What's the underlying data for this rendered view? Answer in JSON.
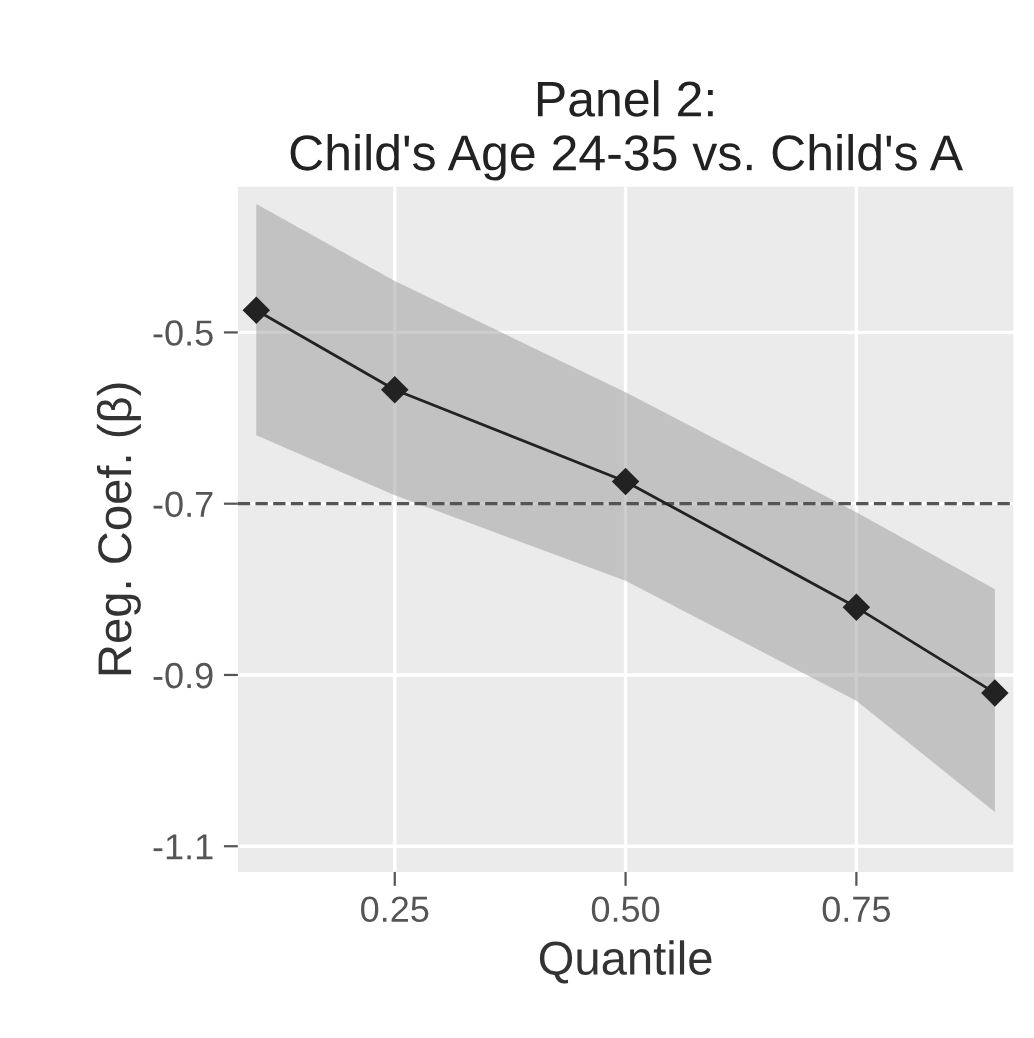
{
  "chart_data": {
    "type": "line",
    "title": "Panel 2:\nChild's Age 24-35 vs. Child's A",
    "xlabel": "Quantile",
    "ylabel": "Reg. Coef. (β)",
    "x": [
      0.1,
      0.25,
      0.5,
      0.75,
      0.9
    ],
    "series": [
      {
        "color": "#222222",
        "values": [
          -0.474,
          -0.567,
          -0.674,
          -0.821,
          -0.921
        ],
        "lower": [
          -0.62,
          -0.69,
          -0.79,
          -0.93,
          -1.06
        ],
        "upper": [
          -0.35,
          -0.44,
          -0.57,
          -0.71,
          -0.8
        ]
      }
    ],
    "xlim": [
      0.08,
      0.92
    ],
    "ylim": [
      -1.13,
      -0.33
    ],
    "xticks": [
      {
        "value": 0.25,
        "label": "0.25"
      },
      {
        "value": 0.5,
        "label": "0.50"
      },
      {
        "value": 0.75,
        "label": "0.75"
      }
    ],
    "yticks": [
      -0.5,
      -0.7,
      -0.9,
      -1.1
    ],
    "ref_lines": [
      {
        "axis": "y",
        "value": -0.7,
        "color": "#555555",
        "line_style": "dashed"
      }
    ],
    "grid": true,
    "marker": "diamond",
    "line_style": "solid",
    "legend": false
  }
}
